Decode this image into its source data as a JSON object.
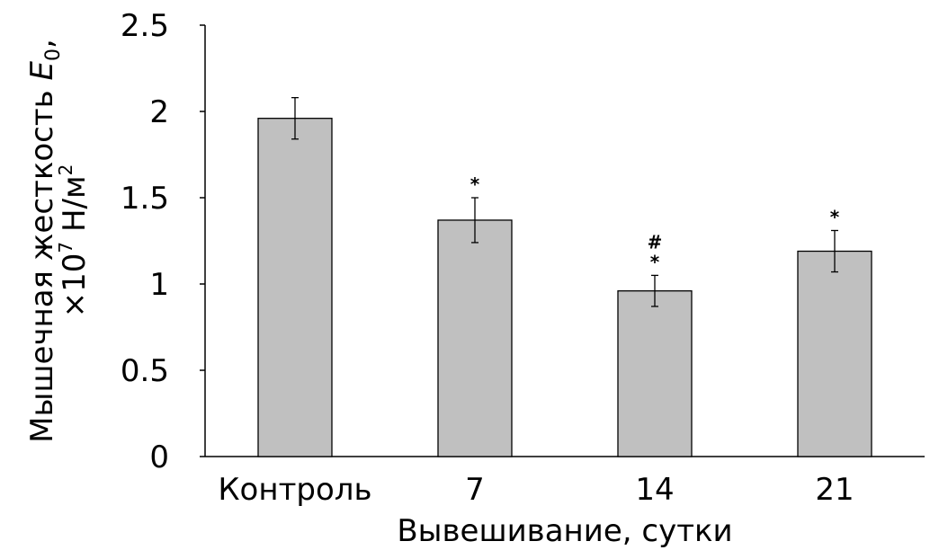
{
  "chart_data": {
    "type": "bar",
    "categories": [
      "Контроль",
      "7",
      "14",
      "21"
    ],
    "values": [
      1.96,
      1.37,
      0.96,
      1.19
    ],
    "error_upper": [
      2.08,
      1.5,
      1.05,
      1.31
    ],
    "error_lower": [
      1.84,
      1.24,
      0.87,
      1.07
    ],
    "markers": [
      "",
      "*",
      "#\n*",
      "*"
    ],
    "ylim": [
      0,
      2.5
    ],
    "yticks": [
      "0",
      "0.5",
      "1",
      "1.5",
      "2",
      "2.5"
    ],
    "ytick_values": [
      0,
      0.5,
      1,
      1.5,
      2,
      2.5
    ],
    "xlabel": "Вывешивание, сутки",
    "ylabel_line1_prefix": "Мышечная жесткость ",
    "ylabel_line1_symbol": "E",
    "ylabel_line1_subscript": "0",
    "ylabel_line1_suffix": ",",
    "ylabel_line2_prefix": "×10",
    "ylabel_line2_exp": "7",
    "ylabel_line2_unit": " Н/м",
    "ylabel_line2_unit_exp": "2",
    "bar_color": "#c0c0c0",
    "bar_edge_color": "#000000",
    "grid": false
  }
}
